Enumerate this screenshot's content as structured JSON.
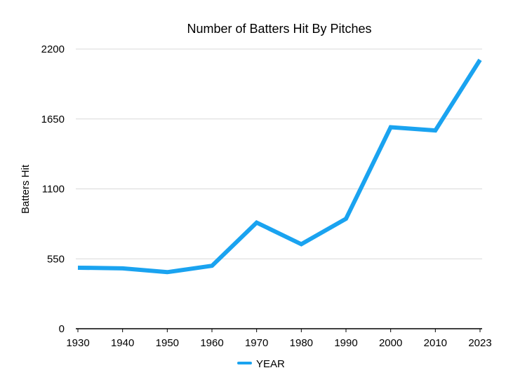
{
  "chart_data": {
    "type": "line",
    "title": "Number of Batters Hit By Pitches",
    "xlabel": "",
    "ylabel": "Batters Hit",
    "categories": [
      "1930",
      "1940",
      "1950",
      "1960",
      "1970",
      "1980",
      "1990",
      "2000",
      "2010",
      "2023"
    ],
    "series": [
      {
        "name": "YEAR",
        "color": "#1aa3f0",
        "values": [
          480,
          475,
          445,
          495,
          835,
          665,
          865,
          1585,
          1560,
          2115
        ]
      }
    ],
    "yticks": [
      "0",
      "550",
      "1100",
      "1650",
      "2200"
    ],
    "ylim": [
      0,
      2200
    ],
    "grid": true,
    "legend_position": "bottom-center"
  }
}
